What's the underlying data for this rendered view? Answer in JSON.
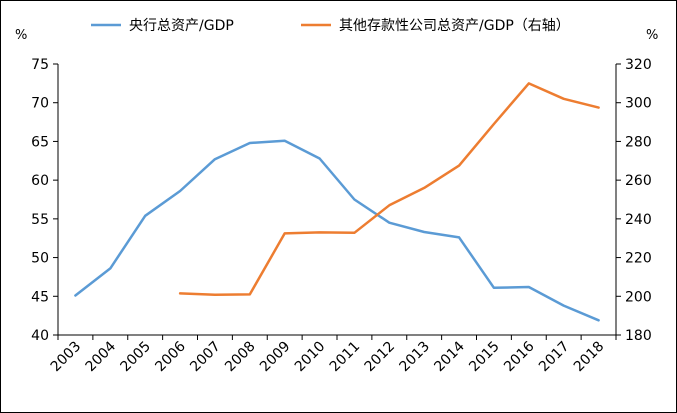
{
  "chart_data": {
    "type": "line",
    "categories": [
      "2003",
      "2004",
      "2005",
      "2006",
      "2007",
      "2008",
      "2009",
      "2010",
      "2011",
      "2012",
      "2013",
      "2014",
      "2015",
      "2016",
      "2017",
      "2018"
    ],
    "series": [
      {
        "name": "央行总资产/GDP",
        "axis": "left",
        "color": "#5B9BD5",
        "values": [
          45.1,
          48.6,
          55.4,
          58.6,
          62.7,
          64.8,
          65.1,
          62.8,
          57.5,
          54.5,
          53.3,
          52.6,
          46.1,
          46.2,
          43.8,
          41.9
        ]
      },
      {
        "name": "其他存款性公司总资产/GDP（右轴）",
        "axis": "right",
        "color": "#ED7D31",
        "values": [
          null,
          null,
          null,
          201.5,
          200.8,
          201.0,
          232.5,
          233.0,
          232.8,
          247.0,
          256.0,
          267.5,
          289.0,
          310.0,
          302.0,
          297.5
        ]
      }
    ],
    "yaxis_left": {
      "unit": "%",
      "ylim": [
        40,
        75
      ],
      "ticks": [
        "40",
        "45",
        "50",
        "55",
        "60",
        "65",
        "70",
        "75"
      ]
    },
    "yaxis_right": {
      "unit": "%",
      "ylim": [
        180,
        320
      ],
      "ticks": [
        "180",
        "200",
        "220",
        "240",
        "260",
        "280",
        "300",
        "320"
      ]
    },
    "grid": false,
    "legend_position": "top-center"
  }
}
